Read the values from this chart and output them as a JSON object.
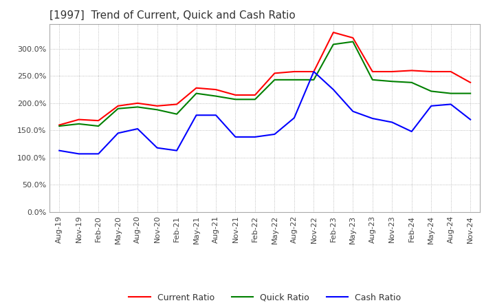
{
  "title": "[1997]  Trend of Current, Quick and Cash Ratio",
  "x_labels": [
    "Aug-19",
    "Nov-19",
    "Feb-20",
    "May-20",
    "Aug-20",
    "Nov-20",
    "Feb-21",
    "May-21",
    "Aug-21",
    "Nov-21",
    "Feb-22",
    "May-22",
    "Aug-22",
    "Nov-22",
    "Feb-23",
    "May-23",
    "Aug-23",
    "Nov-23",
    "Feb-24",
    "May-24",
    "Aug-24",
    "Nov-24"
  ],
  "current_ratio": [
    160,
    170,
    168,
    195,
    200,
    195,
    198,
    228,
    225,
    215,
    215,
    255,
    258,
    258,
    330,
    320,
    258,
    258,
    260,
    258,
    258,
    238
  ],
  "quick_ratio": [
    158,
    162,
    158,
    190,
    193,
    188,
    180,
    218,
    213,
    207,
    207,
    243,
    243,
    243,
    308,
    313,
    243,
    240,
    238,
    222,
    218,
    218
  ],
  "cash_ratio": [
    113,
    107,
    107,
    145,
    153,
    118,
    113,
    178,
    178,
    138,
    138,
    143,
    173,
    258,
    225,
    185,
    172,
    165,
    148,
    195,
    198,
    170
  ],
  "current_color": "#FF0000",
  "quick_color": "#008000",
  "cash_color": "#0000FF",
  "ylim": [
    0,
    345
  ],
  "yticks": [
    0,
    50,
    100,
    150,
    200,
    250,
    300
  ],
  "background_color": "#ffffff",
  "grid_color": "#aaaaaa",
  "title_fontsize": 11,
  "tick_fontsize": 8,
  "legend_fontsize": 9
}
